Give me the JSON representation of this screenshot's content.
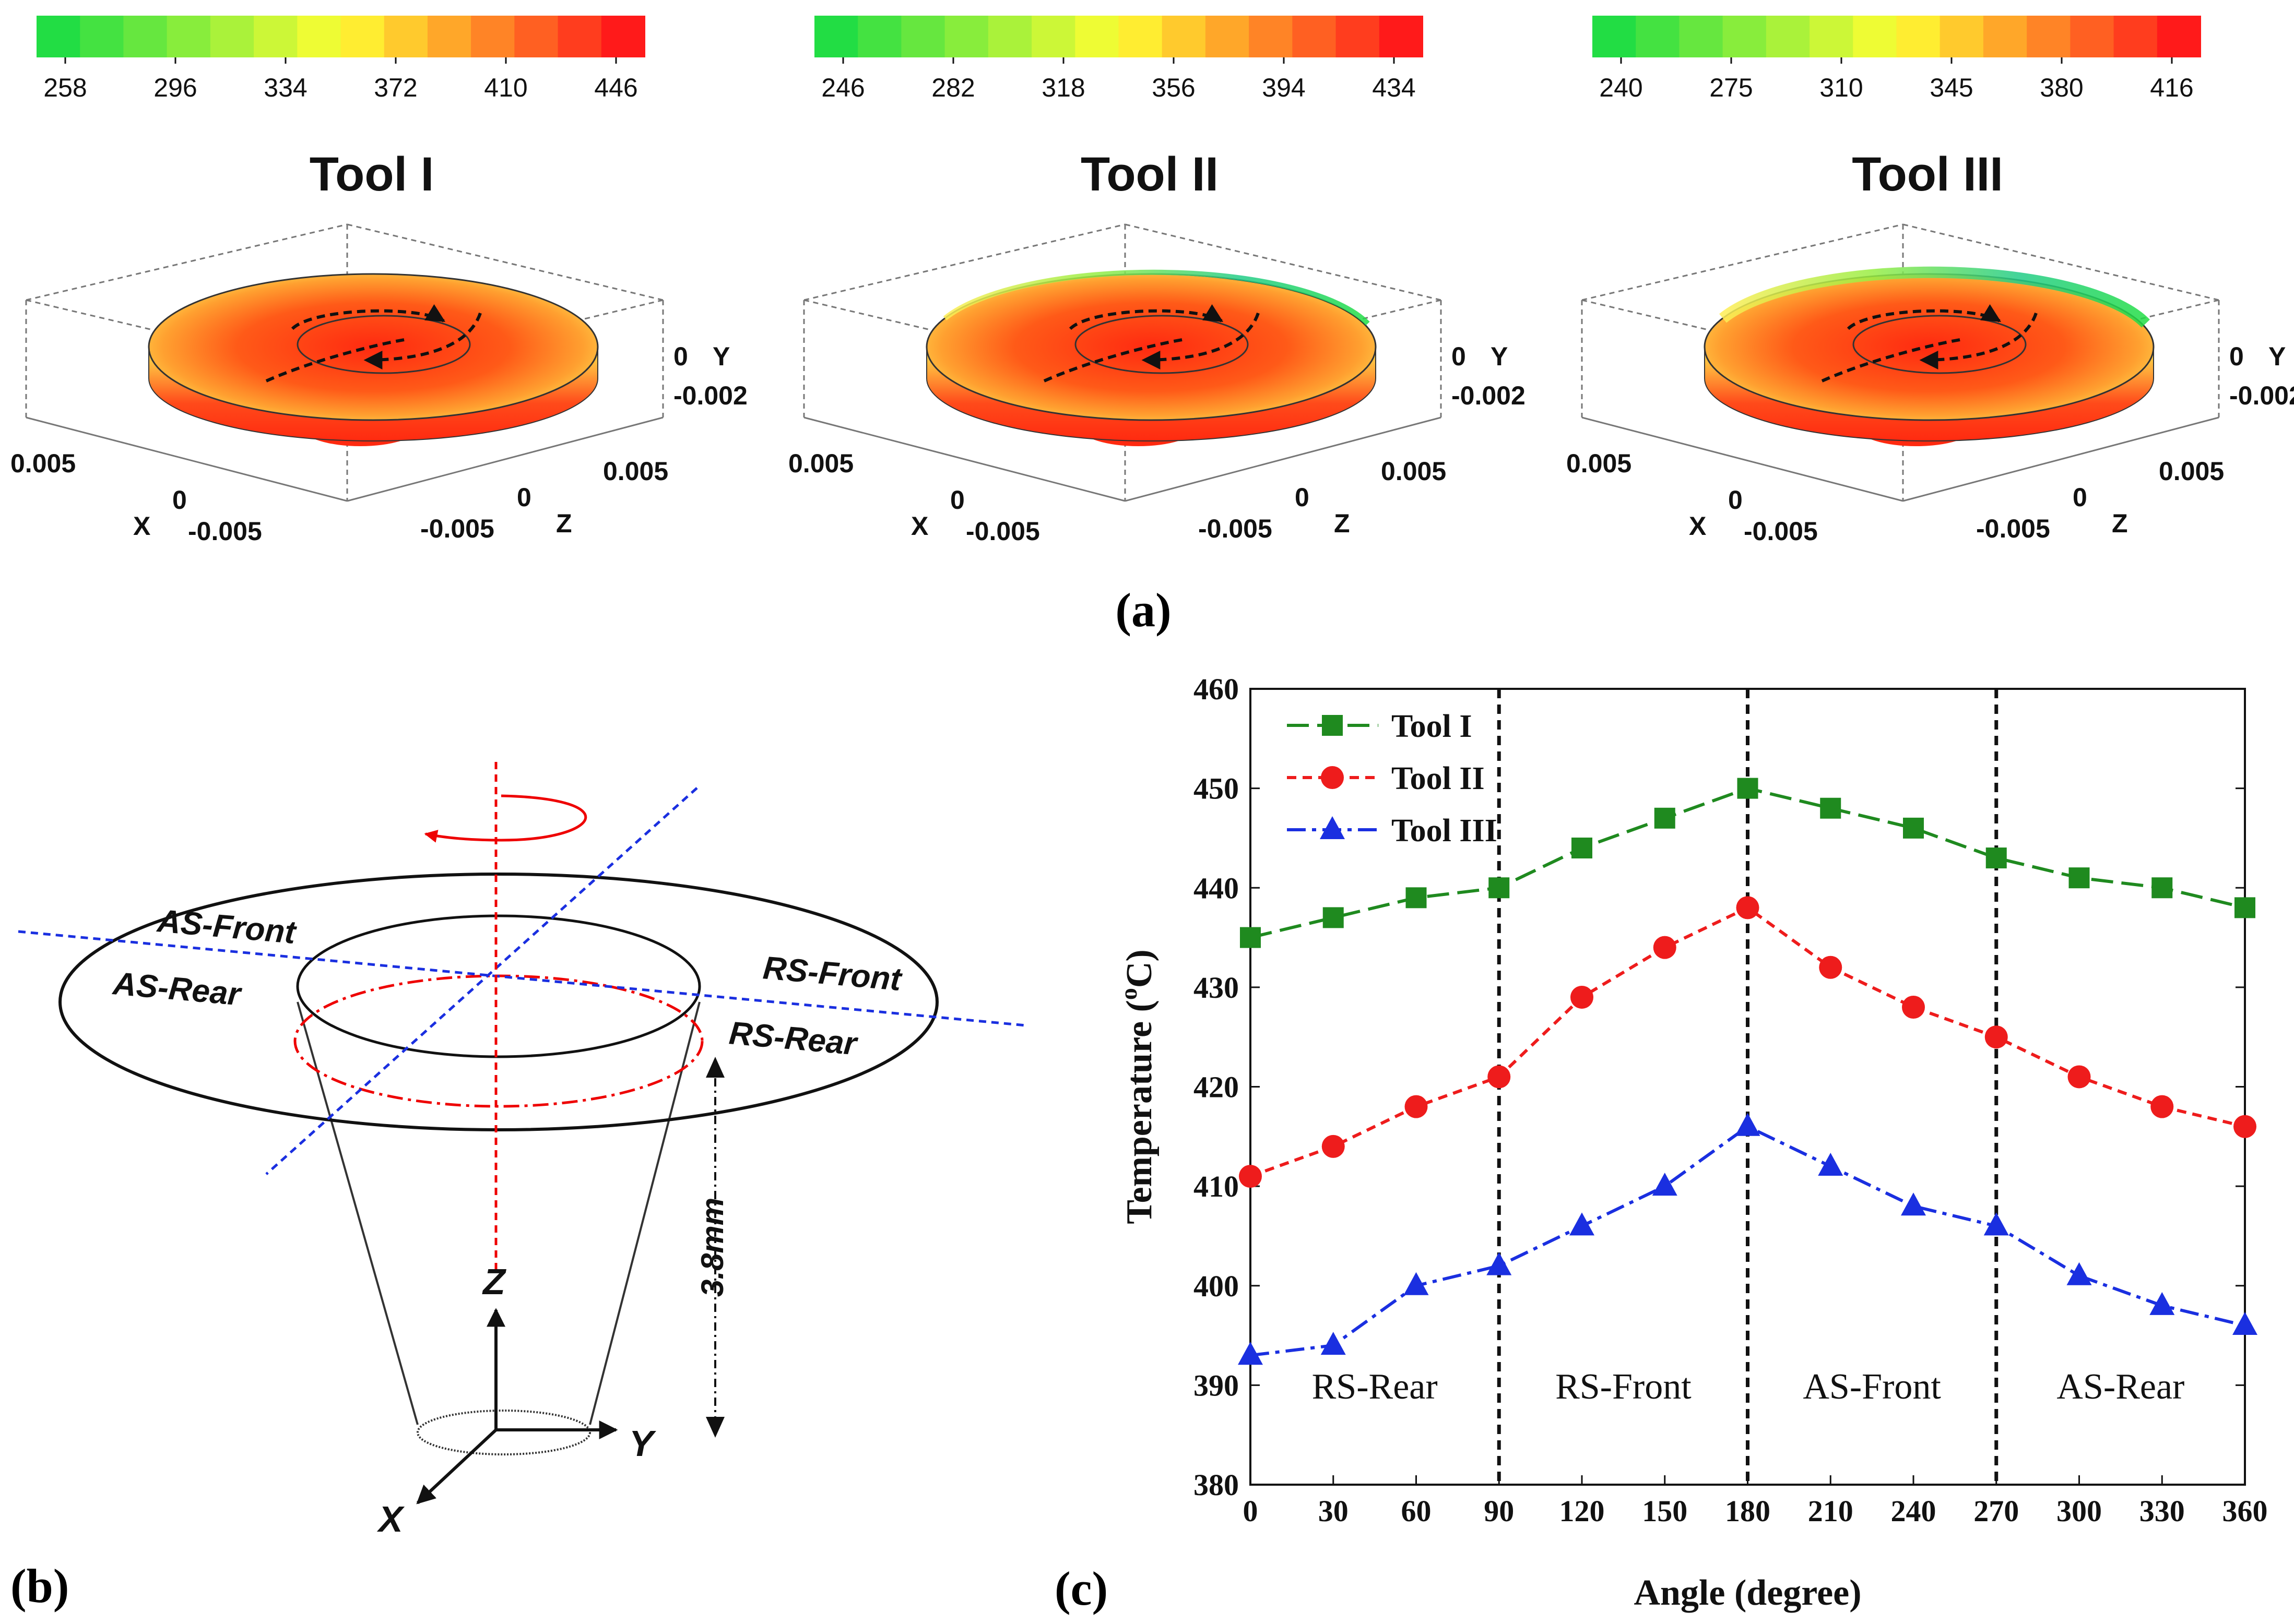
{
  "panel_a": {
    "label": "(a)",
    "axis_labels": {
      "x": "X",
      "y": "Y",
      "z": "Z"
    },
    "axis_ticks": {
      "x_pos": "0.005",
      "x_zero": "0",
      "x_neg": "-0.005",
      "z_pos": "0.005",
      "z_zero": "0",
      "z_neg": "-0.005",
      "y_zero": "0",
      "y_neg": "-0.002"
    },
    "tools": [
      {
        "title": "Tool I",
        "colorbar_ticks": [
          "258",
          "296",
          "334",
          "372",
          "410",
          "446"
        ]
      },
      {
        "title": "Tool II",
        "colorbar_ticks": [
          "246",
          "282",
          "318",
          "356",
          "394",
          "434"
        ]
      },
      {
        "title": "Tool III",
        "colorbar_ticks": [
          "240",
          "275",
          "310",
          "345",
          "380",
          "416"
        ]
      }
    ],
    "colors": {
      "cold": "#22dd44",
      "mid": "#ffff33",
      "warm": "#ff9922",
      "hot": "#ff1a1a"
    }
  },
  "panel_b": {
    "label": "(b)",
    "regions": [
      "AS-Front",
      "AS-Rear",
      "RS-Front",
      "RS-Rear"
    ],
    "axes": {
      "x": "X",
      "y": "Y",
      "z": "Z"
    },
    "dimension": "3.8mm"
  },
  "panel_c": {
    "label": "(c)"
  },
  "chart_data": {
    "type": "line",
    "title": "",
    "xlabel": "Angle (degree)",
    "ylabel": "Temperature (°C)",
    "ylabel_main": "Temperature (",
    "ylabel_sup": "o",
    "ylabel_unit": "C)",
    "x": [
      0,
      30,
      60,
      90,
      120,
      150,
      180,
      210,
      240,
      270,
      300,
      330,
      360
    ],
    "xlim": [
      0,
      360
    ],
    "ylim": [
      380,
      460
    ],
    "xticks": [
      "0",
      "30",
      "60",
      "90",
      "120",
      "150",
      "180",
      "210",
      "240",
      "270",
      "300",
      "330",
      "360"
    ],
    "yticks": [
      "380",
      "390",
      "400",
      "410",
      "420",
      "430",
      "440",
      "450",
      "460"
    ],
    "series": [
      {
        "name": "Tool I",
        "color": "#1f8a1f",
        "marker": "square",
        "dash": "long-dash",
        "values": [
          435,
          437,
          439,
          440,
          444,
          447,
          450,
          448,
          446,
          443,
          441,
          440,
          438
        ]
      },
      {
        "name": "Tool II",
        "color": "#ee1c1c",
        "marker": "circle",
        "dash": "short-dash",
        "values": [
          411,
          414,
          418,
          421,
          429,
          434,
          438,
          432,
          428,
          425,
          421,
          418,
          416
        ]
      },
      {
        "name": "Tool III",
        "color": "#1a2fe0",
        "marker": "triangle",
        "dash": "dash-dot",
        "values": [
          393,
          394,
          400,
          402,
          406,
          410,
          416,
          412,
          408,
          406,
          401,
          398,
          396
        ]
      }
    ],
    "vlines": [
      90,
      180,
      270
    ],
    "regions": [
      {
        "label": "RS-Rear",
        "center": 45
      },
      {
        "label": "RS-Front",
        "center": 135
      },
      {
        "label": "AS-Front",
        "center": 225
      },
      {
        "label": "AS-Rear",
        "center": 315
      }
    ],
    "legend_position": "top-left"
  }
}
